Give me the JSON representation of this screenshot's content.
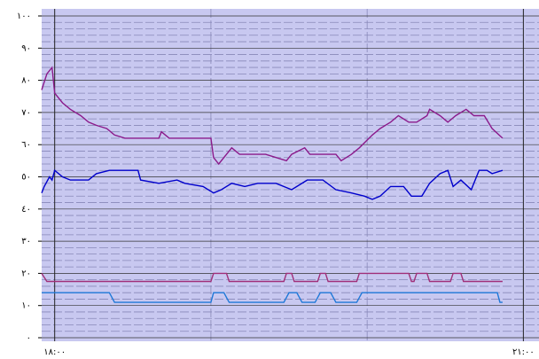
{
  "chart_data": {
    "type": "line",
    "ylim": [
      0,
      100
    ],
    "yticks": [
      {
        "value": 0,
        "label": "٠"
      },
      {
        "value": 10,
        "label": "١٠"
      },
      {
        "value": 20,
        "label": "٢٠"
      },
      {
        "value": 30,
        "label": "٣٠"
      },
      {
        "value": 40,
        "label": "٤٠"
      },
      {
        "value": 50,
        "label": "٥٠"
      },
      {
        "value": 60,
        "label": "٦٠"
      },
      {
        "value": 70,
        "label": "٧٠"
      },
      {
        "value": 80,
        "label": "٨٠"
      },
      {
        "value": 90,
        "label": "٩٠"
      },
      {
        "value": 100,
        "label": "١٠٠"
      }
    ],
    "xlim": [
      -5,
      186
    ],
    "xticks": [
      {
        "value": 0,
        "label": "١٨:٠٠"
      },
      {
        "value": 180,
        "label": "٢١:٠٠"
      }
    ],
    "grid": true,
    "series": [
      {
        "color": "#8b1a8b",
        "x": [
          -5,
          -3,
          -1,
          0,
          3,
          6,
          10,
          13,
          16,
          20,
          23,
          27,
          40,
          41,
          44,
          60,
          61,
          63,
          66,
          68,
          71,
          81,
          89,
          91,
          96,
          98,
          108,
          110,
          114,
          117,
          122,
          125,
          129,
          132,
          136,
          139,
          143,
          144,
          148,
          151,
          154,
          158,
          161,
          165,
          168,
          172
        ],
        "values": [
          77,
          82,
          84,
          76,
          73,
          71,
          69,
          67,
          66,
          65,
          63,
          62,
          62,
          64,
          62,
          62,
          56,
          54,
          57,
          59,
          57,
          57,
          55,
          57,
          59,
          57,
          57,
          55,
          57,
          59,
          63,
          65,
          67,
          69,
          67,
          67,
          69,
          71,
          69,
          67,
          69,
          71,
          69,
          69,
          65,
          62
        ]
      },
      {
        "color": "#0000cc",
        "x": [
          -5,
          -4,
          -2,
          -1,
          0,
          3,
          6,
          13,
          16,
          21,
          32,
          33,
          40,
          47,
          50,
          57,
          61,
          64,
          68,
          73,
          78,
          85,
          91,
          97,
          103,
          108,
          114,
          119,
          122,
          125,
          129,
          134,
          137,
          141,
          144,
          148,
          151,
          153,
          156,
          160,
          163,
          166,
          168,
          172
        ],
        "values": [
          45,
          47,
          50,
          49,
          52,
          50,
          49,
          49,
          51,
          52,
          52,
          49,
          48,
          49,
          48,
          47,
          45,
          46,
          48,
          47,
          48,
          48,
          46,
          49,
          49,
          46,
          45,
          44,
          43,
          44,
          47,
          47,
          44,
          44,
          48,
          51,
          52,
          47,
          49,
          46,
          52,
          52,
          51,
          52
        ]
      },
      {
        "color": "#a0307a",
        "x": [
          -5,
          -3,
          60,
          61,
          66,
          67,
          88,
          89,
          91,
          92,
          101,
          102,
          104,
          105,
          116,
          117,
          136,
          137,
          138,
          139,
          143,
          144,
          152,
          153,
          156,
          157,
          172
        ],
        "values": [
          20,
          17.5,
          17.5,
          20,
          20,
          17.5,
          17.5,
          20,
          20,
          17.5,
          17.5,
          20,
          20,
          17.5,
          17.5,
          20,
          20,
          17.5,
          17.5,
          20,
          20,
          17.5,
          17.5,
          20,
          20,
          17.5,
          17.5
        ]
      },
      {
        "color": "#1e78d8",
        "x": [
          -5,
          21,
          23,
          60,
          61,
          65,
          67,
          88,
          90,
          93,
          95,
          100,
          102,
          106,
          108,
          116,
          118,
          170,
          171,
          172
        ],
        "values": [
          14,
          14,
          11,
          11,
          14,
          14,
          11,
          11,
          14,
          14,
          11,
          11,
          14,
          14,
          11,
          11,
          14,
          14,
          11,
          11
        ]
      }
    ]
  }
}
